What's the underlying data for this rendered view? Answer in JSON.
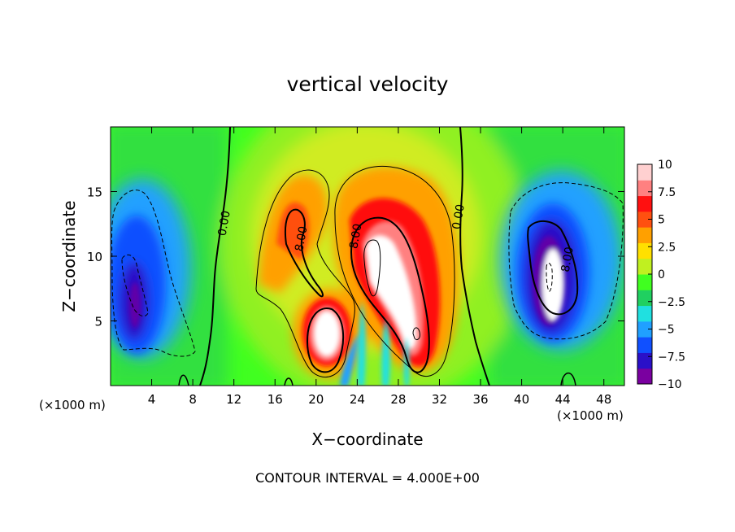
{
  "chart_data": {
    "type": "heatmap",
    "title": "vertical velocity",
    "xlabel": "X−coordinate",
    "ylabel": "Z−coordinate",
    "x_unit_left": "(×1000 m)",
    "x_unit_right": "(×1000 m)",
    "footer": "CONTOUR INTERVAL = 4.000E+00",
    "xlim": [
      0,
      50
    ],
    "ylim": [
      0,
      20
    ],
    "x_ticks": [
      "4",
      "8",
      "12",
      "16",
      "20",
      "24",
      "28",
      "32",
      "36",
      "40",
      "44",
      "48"
    ],
    "y_ticks": [
      "5",
      "10",
      "15"
    ],
    "colorbar": {
      "range": [
        -10,
        10
      ],
      "tick_labels": [
        "10",
        "7.5",
        "5",
        "2.5",
        "0",
        "−2.5",
        "−5",
        "−7.5",
        "−10"
      ],
      "tick_values": [
        10,
        7.5,
        5,
        2.5,
        0,
        -2.5,
        -5,
        -7.5,
        -10
      ],
      "palette": [
        "#7a00a0",
        "#2a10c8",
        "#1050ff",
        "#20a0ff",
        "#20e0e0",
        "#20d060",
        "#40ff20",
        "#c0f020",
        "#ffe000",
        "#ffa000",
        "#ff5010",
        "#ff1010",
        "#ff8080",
        "#ffd0d0"
      ]
    },
    "contour_labels": [
      {
        "text": "0.00",
        "x": 11,
        "y": 12.5
      },
      {
        "text": "0.00",
        "x": 33.8,
        "y": 13
      },
      {
        "text": "8.00",
        "x": 18.5,
        "y": 11.3
      },
      {
        "text": "8.00",
        "x": 23.8,
        "y": 11.5
      },
      {
        "text": "8.00",
        "x": 44.4,
        "y": 9.7
      }
    ],
    "features": [
      {
        "kind": "downdraft",
        "cx": 2.5,
        "cz": 8,
        "peak": -10
      },
      {
        "kind": "updraft",
        "cx": 25.5,
        "cz": 7.5,
        "peak": 12
      },
      {
        "kind": "updraft",
        "cx": 20.5,
        "cz": 4.5,
        "peak": 12
      },
      {
        "kind": "updraft",
        "cx": 17.5,
        "cz": 11,
        "peak": 8
      },
      {
        "kind": "updraft",
        "cx": 30,
        "cz": 5,
        "peak": 11
      },
      {
        "kind": "downdraft",
        "cx": 42.5,
        "cz": 8,
        "peak": -10
      },
      {
        "kind": "updraft",
        "cx": 43.2,
        "cz": 8.5,
        "peak": 12
      }
    ]
  }
}
